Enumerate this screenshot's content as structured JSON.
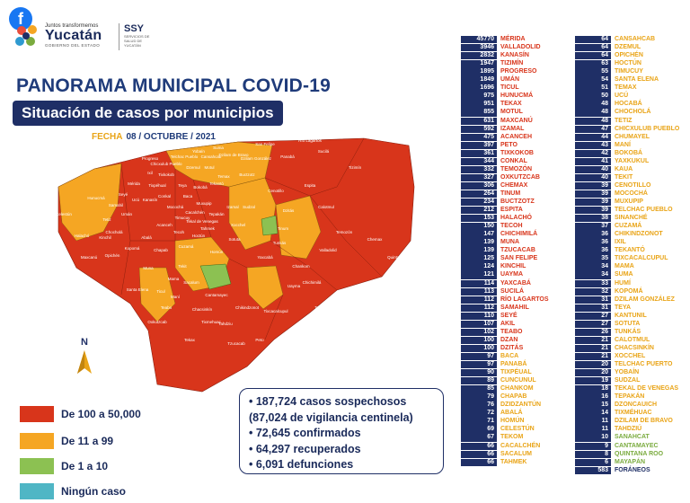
{
  "header": {
    "fb_icon": "facebook-icon",
    "gov_small": "Juntos transformemos",
    "gov_big": "Yucatán",
    "gov_sub": "GOBIERNO DEL ESTADO",
    "ssy": "SSY",
    "ssy_sub": "SERVICIOS DE SALUD DE YUCATÁN"
  },
  "title": "PANORAMA MUNICIPAL COVID-19",
  "subtitle": "Situación de casos por municipios",
  "date_label": "FECHA",
  "date_value": "08 / OCTUBRE / 2021",
  "colors": {
    "red": "#d8351b",
    "orange": "#f5a623",
    "green": "#8cc152",
    "blue": "#4fb6c5",
    "navy": "#1f2f66"
  },
  "map_labels": [
    "Río Lagartos",
    "San Felipe",
    "Dzilam de Bravo",
    "Dzilam González",
    "Panabá",
    "Sucilá",
    "Buctzotz",
    "Cenotillo",
    "Espita",
    "Tizimín",
    "Calotmul",
    "Temozón",
    "Chemax",
    "Valladolid",
    "Chankom",
    "Chichimilá",
    "Tekom",
    "Uayma",
    "Tinum",
    "Yaxcabá",
    "Tixcacalcupul",
    "Chikindzonot",
    "Sotuta",
    "Cantamayec",
    "Peto",
    "Tzucacab",
    "Tekax",
    "Oxkutzcab",
    "Ticul",
    "Muna",
    "Tekit",
    "Sacalum",
    "Mama",
    "Maní",
    "Mérida",
    "Progreso",
    "Umán",
    "Kanasín",
    "Hunucmá",
    "Celestún",
    "Maxcanú",
    "Halachó",
    "Opichén",
    "Dzemul",
    "Telchac Pueblo",
    "Motul",
    "Izamal",
    "Sudzal",
    "Tunkás",
    "Dzitás",
    "Quintana Roo",
    "Santa Elena",
    "Tahdziu",
    "Tixmehuac",
    "Chacsinkín",
    "Akil",
    "Teabo",
    "Chapab",
    "Hoctún",
    "Homún",
    "Cuzamá",
    "Acanceh",
    "Timucuy",
    "Tecoh",
    "Abalá",
    "Kopomá",
    "Chocholá",
    "Tetiz",
    "Kinchil",
    "Samahil",
    "Ucú",
    "Tixpéhual",
    "Seyé",
    "Tixkokob",
    "Cansahcab",
    "Temax",
    "Bokobá",
    "Xocchel",
    "Tekantó",
    "Teya",
    "Suma",
    "Yobaín",
    "Sinanché",
    "Chicxulub Pueblo",
    "Ixil",
    "Conkal",
    "Mocochá",
    "Baca",
    "Muxupip",
    "Tekal de Venegas",
    "Tepakán",
    "Cacalchén",
    "Tahmek"
  ],
  "legend": [
    {
      "label": "De 100 a 50,000",
      "color": "#d8351b"
    },
    {
      "label": "De 11 a 99",
      "color": "#f5a623"
    },
    {
      "label": "De 1 a 10",
      "color": "#8cc152"
    },
    {
      "label": "Ningún caso",
      "color": "#4fb6c5"
    }
  ],
  "north_label": "N",
  "summary": [
    "• 187,724 casos sospechosos",
    "(87,024 de vigilancia centinela)",
    "• 72,645 confirmados",
    "• 64,297 recuperados",
    "• 6,091 defunciones"
  ],
  "list_left": [
    {
      "n": "45770",
      "m": "MÉRIDA",
      "c": "red"
    },
    {
      "n": "3946",
      "m": "VALLADOLID",
      "c": "red"
    },
    {
      "n": "2832",
      "m": "KANASÍN",
      "c": "red"
    },
    {
      "n": "1947",
      "m": "TIZIMÍN",
      "c": "red"
    },
    {
      "n": "1895",
      "m": "PROGRESO",
      "c": "red"
    },
    {
      "n": "1849",
      "m": "UMÁN",
      "c": "red"
    },
    {
      "n": "1696",
      "m": "TICUL",
      "c": "red"
    },
    {
      "n": "975",
      "m": "HUNUCMÁ",
      "c": "red"
    },
    {
      "n": "951",
      "m": "TEKAX",
      "c": "red"
    },
    {
      "n": "855",
      "m": "MOTUL",
      "c": "red"
    },
    {
      "n": "631",
      "m": "MAXCANÚ",
      "c": "red"
    },
    {
      "n": "592",
      "m": "IZAMAL",
      "c": "red"
    },
    {
      "n": "475",
      "m": "ACANCEH",
      "c": "red"
    },
    {
      "n": "397",
      "m": "PETO",
      "c": "red"
    },
    {
      "n": "361",
      "m": "TIXKOKOB",
      "c": "red"
    },
    {
      "n": "344",
      "m": "CONKAL",
      "c": "red"
    },
    {
      "n": "332",
      "m": "TEMOZÓN",
      "c": "red"
    },
    {
      "n": "327",
      "m": "OXKUTZCAB",
      "c": "red"
    },
    {
      "n": "306",
      "m": "CHEMAX",
      "c": "red"
    },
    {
      "n": "264",
      "m": "TINUM",
      "c": "red"
    },
    {
      "n": "234",
      "m": "BUCTZOTZ",
      "c": "red"
    },
    {
      "n": "212",
      "m": "ESPITA",
      "c": "red"
    },
    {
      "n": "153",
      "m": "HALACHÓ",
      "c": "red"
    },
    {
      "n": "150",
      "m": "TECOH",
      "c": "red"
    },
    {
      "n": "147",
      "m": "CHICHIMILÁ",
      "c": "red"
    },
    {
      "n": "139",
      "m": "MUNA",
      "c": "red"
    },
    {
      "n": "139",
      "m": "TZUCACAB",
      "c": "red"
    },
    {
      "n": "125",
      "m": "SAN FELIPE",
      "c": "red"
    },
    {
      "n": "124",
      "m": "KINCHIL",
      "c": "red"
    },
    {
      "n": "121",
      "m": "UAYMA",
      "c": "red"
    },
    {
      "n": "114",
      "m": "YAXCABÁ",
      "c": "red"
    },
    {
      "n": "113",
      "m": "SUCILÁ",
      "c": "red"
    },
    {
      "n": "112",
      "m": "RÍO LAGARTOS",
      "c": "red"
    },
    {
      "n": "112",
      "m": "SAMAHIL",
      "c": "red"
    },
    {
      "n": "110",
      "m": "SEYÉ",
      "c": "red"
    },
    {
      "n": "107",
      "m": "AKIL",
      "c": "red"
    },
    {
      "n": "102",
      "m": "TEABO",
      "c": "red"
    },
    {
      "n": "100",
      "m": "DZAN",
      "c": "red"
    },
    {
      "n": "100",
      "m": "DZITÁS",
      "c": "red"
    },
    {
      "n": "97",
      "m": "BACA",
      "c": "org"
    },
    {
      "n": "97",
      "m": "PANABÁ",
      "c": "org"
    },
    {
      "n": "90",
      "m": "TIXPÉUAL",
      "c": "org"
    },
    {
      "n": "89",
      "m": "CUNCUNUL",
      "c": "org"
    },
    {
      "n": "85",
      "m": "CHANKOM",
      "c": "org"
    },
    {
      "n": "79",
      "m": "CHAPAB",
      "c": "org"
    },
    {
      "n": "76",
      "m": "DZIDZANTÚN",
      "c": "org"
    },
    {
      "n": "72",
      "m": "ABALÁ",
      "c": "org"
    },
    {
      "n": "71",
      "m": "HOMÚN",
      "c": "org"
    },
    {
      "n": "69",
      "m": "CELESTÚN",
      "c": "org"
    },
    {
      "n": "67",
      "m": "TEKOM",
      "c": "org"
    },
    {
      "n": "66",
      "m": "CACALCHÉN",
      "c": "org"
    },
    {
      "n": "66",
      "m": "SACALUM",
      "c": "org"
    },
    {
      "n": "66",
      "m": "TAHMEK",
      "c": "org"
    }
  ],
  "list_right": [
    {
      "n": "64",
      "m": "CANSAHCAB",
      "c": "org"
    },
    {
      "n": "64",
      "m": "DZEMUL",
      "c": "org"
    },
    {
      "n": "64",
      "m": "OPICHÉN",
      "c": "org"
    },
    {
      "n": "63",
      "m": "HOCTÚN",
      "c": "org"
    },
    {
      "n": "55",
      "m": "TIMUCUY",
      "c": "org"
    },
    {
      "n": "54",
      "m": "SANTA ELENA",
      "c": "org"
    },
    {
      "n": "51",
      "m": "TEMAX",
      "c": "org"
    },
    {
      "n": "50",
      "m": "UCÚ",
      "c": "org"
    },
    {
      "n": "48",
      "m": "HOCABÁ",
      "c": "org"
    },
    {
      "n": "48",
      "m": "CHOCHOLÁ",
      "c": "org"
    },
    {
      "n": "48",
      "m": "TETIZ",
      "c": "org"
    },
    {
      "n": "47",
      "m": "CHICXULUB PUEBLO",
      "c": "org"
    },
    {
      "n": "44",
      "m": "CHUMAYEL",
      "c": "org"
    },
    {
      "n": "43",
      "m": "MANÍ",
      "c": "org"
    },
    {
      "n": "42",
      "m": "BOKOBÁ",
      "c": "org"
    },
    {
      "n": "41",
      "m": "YAXKUKUL",
      "c": "org"
    },
    {
      "n": "40",
      "m": "KAUA",
      "c": "org"
    },
    {
      "n": "40",
      "m": "TEKIT",
      "c": "org"
    },
    {
      "n": "39",
      "m": "CENOTILLO",
      "c": "org"
    },
    {
      "n": "39",
      "m": "MOCOCHÁ",
      "c": "org"
    },
    {
      "n": "39",
      "m": "MUXUPIP",
      "c": "org"
    },
    {
      "n": "39",
      "m": "TELCHAC PUEBLO",
      "c": "org"
    },
    {
      "n": "38",
      "m": "SINANCHÉ",
      "c": "org"
    },
    {
      "n": "37",
      "m": "CUZAMÁ",
      "c": "org"
    },
    {
      "n": "36",
      "m": "CHIKINDZONOT",
      "c": "org"
    },
    {
      "n": "36",
      "m": "IXIL",
      "c": "org"
    },
    {
      "n": "36",
      "m": "TEKANTÓ",
      "c": "org"
    },
    {
      "n": "35",
      "m": "TIXCACALCUPUL",
      "c": "org"
    },
    {
      "n": "34",
      "m": "MAMA",
      "c": "org"
    },
    {
      "n": "34",
      "m": "SUMA",
      "c": "org"
    },
    {
      "n": "33",
      "m": "HUMÍ",
      "c": "org"
    },
    {
      "n": "32",
      "m": "KOPOMÁ",
      "c": "org"
    },
    {
      "n": "31",
      "m": "DZILAM GONZÁLEZ",
      "c": "org"
    },
    {
      "n": "31",
      "m": "TEYA",
      "c": "org"
    },
    {
      "n": "27",
      "m": "KANTUNIL",
      "c": "org"
    },
    {
      "n": "27",
      "m": "SOTUTA",
      "c": "org"
    },
    {
      "n": "26",
      "m": "TUNKÁS",
      "c": "org"
    },
    {
      "n": "21",
      "m": "CALOTMUL",
      "c": "org"
    },
    {
      "n": "21",
      "m": "CHACSINKÍN",
      "c": "org"
    },
    {
      "n": "21",
      "m": "XOCCHEL",
      "c": "org"
    },
    {
      "n": "20",
      "m": "TELCHAC PUERTO",
      "c": "org"
    },
    {
      "n": "20",
      "m": "YOBAÍN",
      "c": "org"
    },
    {
      "n": "19",
      "m": "SUDZAL",
      "c": "org"
    },
    {
      "n": "18",
      "m": "TEKAL DE VENEGAS",
      "c": "org"
    },
    {
      "n": "16",
      "m": "TEPAKÁN",
      "c": "org"
    },
    {
      "n": "15",
      "m": "DZONCAUICH",
      "c": "org"
    },
    {
      "n": "14",
      "m": "TIXMÉHUAC",
      "c": "org"
    },
    {
      "n": "11",
      "m": "DZILAM DE BRAVO",
      "c": "org"
    },
    {
      "n": "11",
      "m": "TAHDZIÚ",
      "c": "org"
    },
    {
      "n": "10",
      "m": "SANAHCAT",
      "c": "grn"
    },
    {
      "n": "9",
      "m": "CANTAMAYEC",
      "c": "grn"
    },
    {
      "n": "8",
      "m": "QUINTANA ROO",
      "c": "grn"
    },
    {
      "n": "6",
      "m": "MAYAPÁN",
      "c": "grn"
    },
    {
      "n": "583",
      "m": "FORÁNEOS",
      "c": "blue"
    }
  ]
}
